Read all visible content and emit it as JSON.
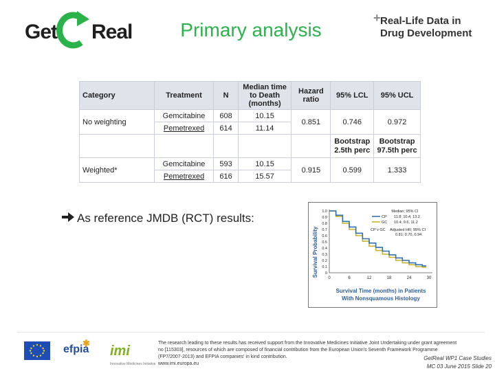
{
  "header": {
    "logo": {
      "get": "Get",
      "real": "Real"
    },
    "title": "Primary analysis",
    "rld_logo": {
      "line1": "Real-Life Data in",
      "line2": "Drug Development"
    }
  },
  "table": {
    "headers": [
      "Category",
      "Treatment",
      "N",
      "Median time to Death (months)",
      "Hazard ratio",
      "95% LCL",
      "95% UCL"
    ],
    "no_weighting": {
      "category": "No weighting",
      "rows": [
        {
          "treatment": "Gemcitabine",
          "n": "608",
          "median": "10.15"
        },
        {
          "treatment": "Pemetrexed",
          "n": "614",
          "median": "11.14"
        }
      ],
      "hazard_ratio": "0.851",
      "lcl": "0.746",
      "ucl": "0.972"
    },
    "bootstrap": {
      "lcl_label_1": "Bootstrap",
      "lcl_label_2": "2.5th perc",
      "ucl_label_1": "Bootstrap",
      "ucl_label_2": "97.5th perc"
    },
    "weighted": {
      "category": "Weighted*",
      "rows": [
        {
          "treatment": "Gemcitabine",
          "n": "593",
          "median": "10.15"
        },
        {
          "treatment": "Pemetrexed",
          "n": "616",
          "median": "15.57"
        }
      ],
      "hazard_ratio": "0.915",
      "lcl": "0.599",
      "ucl": "1.333"
    }
  },
  "bullet": "As reference JMDB (RCT) results:",
  "km_plot": {
    "y_label": "Survival Probability",
    "x_label_line1": "Survival Time (months) in Patients",
    "x_label_line2": "With Nonsquamous Histology",
    "y_ticks": [
      "1.0",
      "0.9",
      "0.8",
      "0.7",
      "0.6",
      "0.5",
      "0.4",
      "0.3",
      "0.2",
      "0.1",
      "0"
    ],
    "x_ticks": [
      "0",
      "6",
      "12",
      "18",
      "24",
      "30"
    ],
    "legend_header": "Median; 95% CI",
    "legend_rows": [
      {
        "label": "CP",
        "value": "11.8; 10.4, 13.2"
      },
      {
        "label": "GC",
        "value": "10.4; 9.6, 11.2"
      }
    ],
    "hr_header_label": "CP v GC",
    "hr_header": "Adjusted HR; 95% CI",
    "hr_value": "0.81; 0.70, 0.94",
    "colors": {
      "cp": "#2f6fb5",
      "gc": "#c8b42a"
    },
    "curves": {
      "cp": [
        [
          0,
          1.0
        ],
        [
          2,
          0.93
        ],
        [
          4,
          0.83
        ],
        [
          6,
          0.74
        ],
        [
          8,
          0.64
        ],
        [
          10,
          0.55
        ],
        [
          12,
          0.48
        ],
        [
          14,
          0.41
        ],
        [
          16,
          0.35
        ],
        [
          18,
          0.29
        ],
        [
          20,
          0.24
        ],
        [
          22,
          0.2
        ],
        [
          24,
          0.16
        ],
        [
          26,
          0.13
        ],
        [
          28,
          0.11
        ],
        [
          29,
          0.1
        ]
      ],
      "gc": [
        [
          0,
          1.0
        ],
        [
          2,
          0.91
        ],
        [
          4,
          0.8
        ],
        [
          6,
          0.7
        ],
        [
          8,
          0.6
        ],
        [
          10,
          0.51
        ],
        [
          12,
          0.43
        ],
        [
          14,
          0.36
        ],
        [
          16,
          0.3
        ],
        [
          18,
          0.25
        ],
        [
          20,
          0.2
        ],
        [
          22,
          0.16
        ],
        [
          24,
          0.13
        ],
        [
          26,
          0.1
        ],
        [
          28,
          0.09
        ],
        [
          29,
          0.08
        ]
      ]
    }
  },
  "footer": {
    "efpia": "efpia",
    "imi": "imi",
    "imi_sub": "Innovative Medicines Initiative",
    "ack": "The research leading to these results has received support from the Innovative Medicines Initiative Joint Undertaking under grant agreement no [115303], resources of which are composed of financial contribution from the European Union's Seventh Framework Programme (FP7/2007-2013) and EFPIA companies' in kind contribution.",
    "url": "www.imi.europa.eu",
    "ref_line1": "GetReal WP1 Case Studies",
    "ref_line2": "MC 03 June 2015   Slide 20"
  }
}
